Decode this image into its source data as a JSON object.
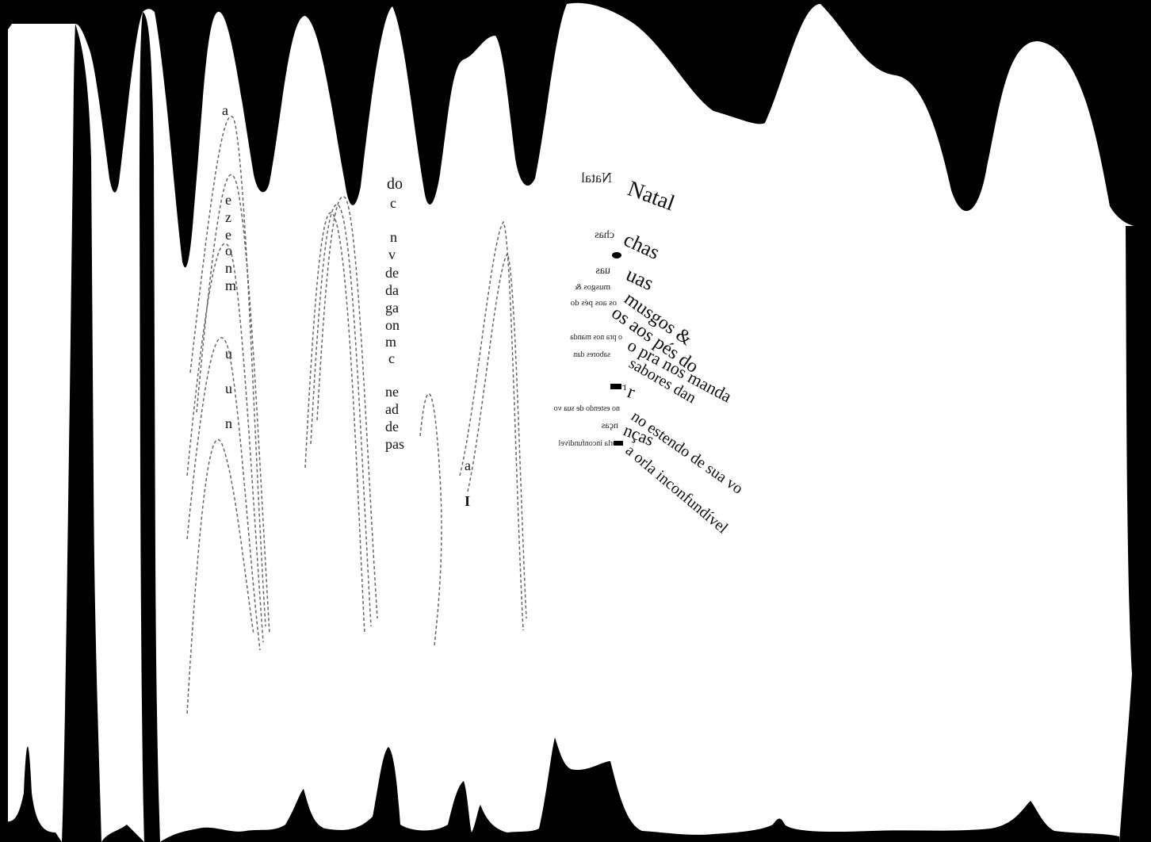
{
  "colors": {
    "background": "#ffffff",
    "ink": "#000000",
    "text": "#111111"
  },
  "scan": {
    "title_word": "Natal",
    "title_word_mirrored": "Natal",
    "curved_lines": [
      "chas",
      "uas",
      "musgos &",
      "os aos pés do",
      "o pra nos manda",
      "sabores dan",
      "r",
      "no estendo de sua vo",
      "nças",
      "a orla inconfundível"
    ],
    "mirrored_lines": [
      "chas",
      "uas",
      "musgos &",
      "os aos pés do",
      "o pra nos manda",
      "sabores dan",
      "r",
      "no estendo de sua vo",
      "nças",
      "a orla inconfundível"
    ],
    "column_fragments": [
      "do",
      "c",
      "n",
      "v",
      "de",
      "da",
      "ga",
      "on",
      "m",
      "c",
      "ne",
      "ad",
      "de",
      "pas"
    ],
    "left_column_letters": [
      "a",
      "e",
      "z",
      "e",
      "o",
      "n",
      "m",
      "u",
      "u",
      "n"
    ],
    "small_fragments": [
      "a",
      "I"
    ]
  }
}
